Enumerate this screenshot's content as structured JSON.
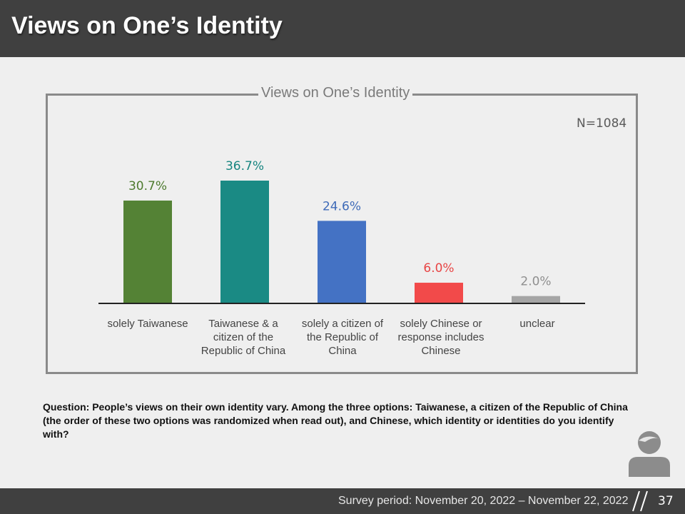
{
  "header": {
    "title": "Views on One’s Identity"
  },
  "sample": "N=1084",
  "chart_data": {
    "type": "bar",
    "title": "Views on One’s Identity",
    "categories": [
      "solely Taiwanese",
      "Taiwanese & a citizen of the Republic of China",
      "solely a citizen of the Republic of China",
      "solely Chinese or response includes Chinese",
      "unclear"
    ],
    "values": [
      30.7,
      36.7,
      24.6,
      6.0,
      2.0
    ],
    "value_labels": [
      "30.7%",
      "36.7%",
      "24.6%",
      "6.0%",
      "2.0%"
    ],
    "colors": [
      "#548235",
      "#1a8a84",
      "#4472c4",
      "#f24a4a",
      "#a5a5a5"
    ],
    "label_colors": [
      "#4d7a2e",
      "#178580",
      "#3f6bb8",
      "#e84545",
      "#8f8f8f"
    ],
    "ylim": [
      0,
      40
    ],
    "xlabel": "",
    "ylabel": "",
    "grid": false,
    "legend": "none"
  },
  "question": "Question: People’s views on their own identity vary. Among the three options: Taiwanese, a citizen of the Republic of China (the order of these two options was randomized when read out), and Chinese, which identity or identities do you identify with?",
  "footer": {
    "survey_period": "Survey period: November 20, 2022 – November 22, 2022",
    "page_number": "37"
  }
}
